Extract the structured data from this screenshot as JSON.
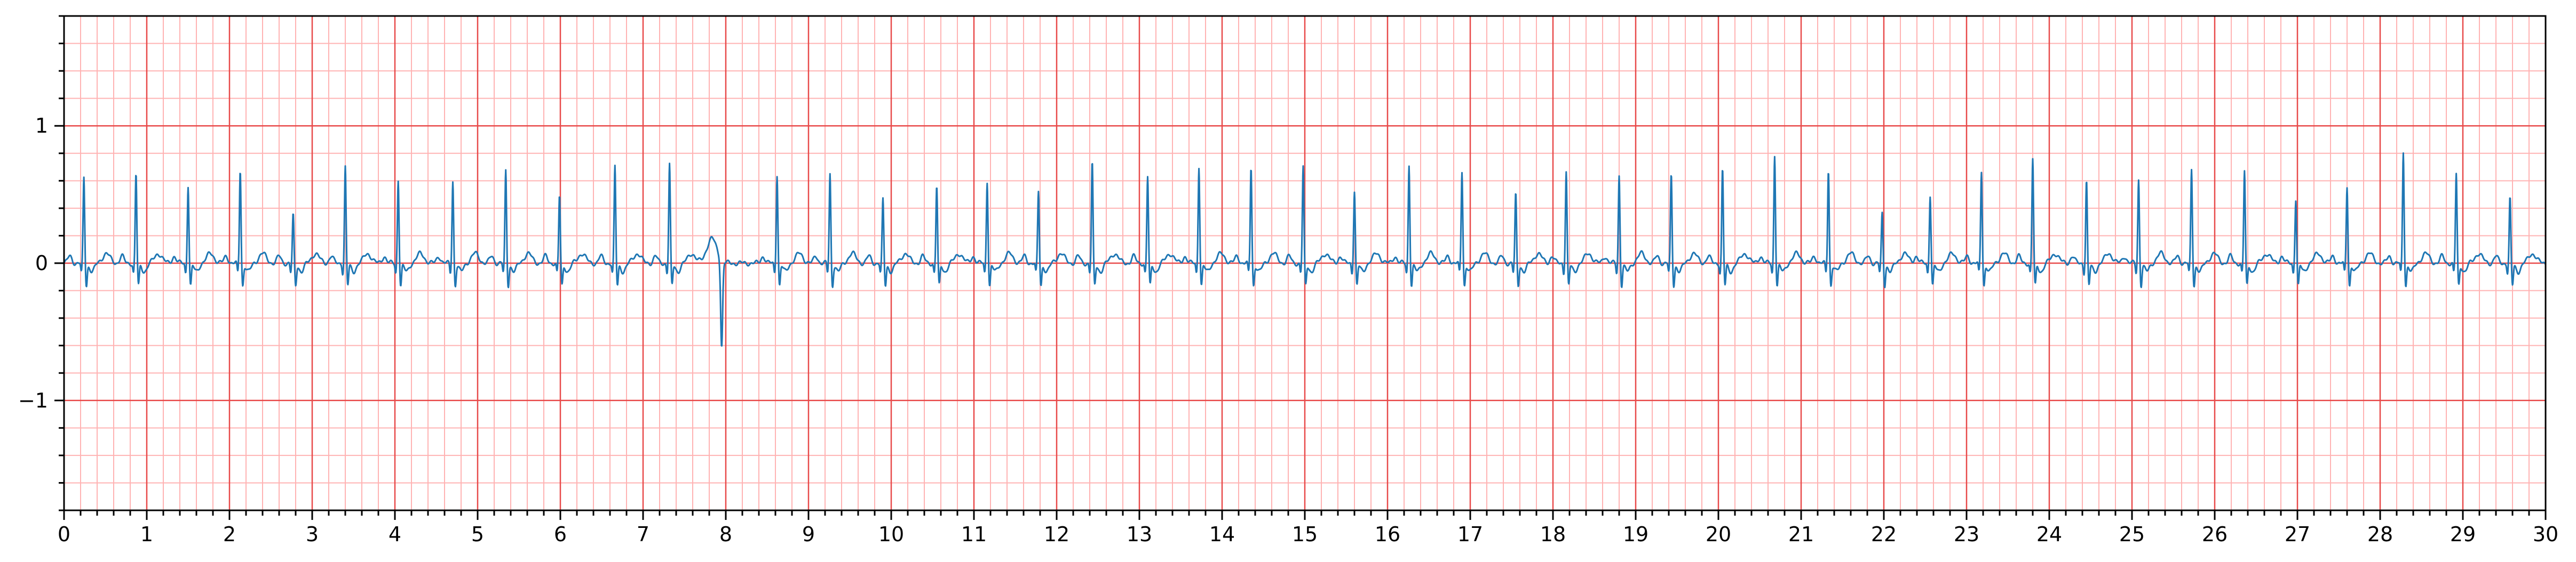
{
  "chart_data": {
    "type": "line",
    "title": "",
    "xlabel": "",
    "ylabel": "",
    "xlim": [
      0,
      30
    ],
    "ylim": [
      -1.8,
      1.8
    ],
    "x_major_ticks": [
      "0",
      "1",
      "2",
      "3",
      "4",
      "5",
      "6",
      "7",
      "8",
      "9",
      "10",
      "11",
      "12",
      "13",
      "14",
      "15",
      "16",
      "17",
      "18",
      "19",
      "20",
      "21",
      "22",
      "23",
      "24",
      "25",
      "26",
      "27",
      "28",
      "29",
      "30"
    ],
    "y_major_ticks": [
      {
        "value": 1,
        "label": "1"
      },
      {
        "value": 0,
        "label": "0"
      },
      {
        "value": -1,
        "label": "−1"
      }
    ],
    "x_minor_step": 0.2,
    "y_minor_step": 0.2,
    "grid": "ecg paper (major 1 unit, minor 0.2 unit)",
    "colors": {
      "trace": "#1f77b4",
      "grid_major": "#e84a4a",
      "grid_minor": "#ffb3b3"
    },
    "series": [
      {
        "beats": [
          {
            "t": 0.24,
            "r": 0.57
          },
          {
            "t": 0.87,
            "r": 0.6
          },
          {
            "t": 1.5,
            "r": 0.52
          },
          {
            "t": 2.13,
            "r": 0.63
          },
          {
            "t": 2.77,
            "r": 0.3
          },
          {
            "t": 3.4,
            "r": 0.65
          },
          {
            "t": 4.04,
            "r": 0.56
          },
          {
            "t": 4.7,
            "r": 0.55
          },
          {
            "t": 5.34,
            "r": 0.62
          },
          {
            "t": 5.99,
            "r": 0.44
          },
          {
            "t": 6.66,
            "r": 0.65
          },
          {
            "t": 7.32,
            "r": 0.67
          },
          {
            "t": 7.95,
            "r": -0.63
          },
          {
            "t": 8.62,
            "r": 0.6
          },
          {
            "t": 9.26,
            "r": 0.6
          },
          {
            "t": 9.9,
            "r": 0.41
          },
          {
            "t": 10.55,
            "r": 0.51
          },
          {
            "t": 11.16,
            "r": 0.55
          },
          {
            "t": 11.78,
            "r": 0.47
          },
          {
            "t": 12.43,
            "r": 0.68
          },
          {
            "t": 13.1,
            "r": 0.58
          },
          {
            "t": 13.72,
            "r": 0.66
          },
          {
            "t": 14.35,
            "r": 0.65
          },
          {
            "t": 14.98,
            "r": 0.65
          },
          {
            "t": 15.6,
            "r": 0.48
          },
          {
            "t": 16.26,
            "r": 0.67
          },
          {
            "t": 16.9,
            "r": 0.62
          },
          {
            "t": 17.55,
            "r": 0.45
          },
          {
            "t": 18.16,
            "r": 0.62
          },
          {
            "t": 18.8,
            "r": 0.59
          },
          {
            "t": 19.43,
            "r": 0.59
          },
          {
            "t": 20.05,
            "r": 0.63
          },
          {
            "t": 20.68,
            "r": 0.74
          },
          {
            "t": 21.33,
            "r": 0.63
          },
          {
            "t": 21.98,
            "r": 0.31
          },
          {
            "t": 22.56,
            "r": 0.45
          },
          {
            "t": 23.18,
            "r": 0.62
          },
          {
            "t": 23.8,
            "r": 0.71
          },
          {
            "t": 24.45,
            "r": 0.55
          },
          {
            "t": 25.08,
            "r": 0.56
          },
          {
            "t": 25.72,
            "r": 0.63
          },
          {
            "t": 26.36,
            "r": 0.62
          },
          {
            "t": 26.98,
            "r": 0.42
          },
          {
            "t": 27.6,
            "r": 0.51
          },
          {
            "t": 28.28,
            "r": 0.76
          },
          {
            "t": 28.92,
            "r": 0.6
          },
          {
            "t": 29.57,
            "r": 0.42
          }
        ]
      }
    ]
  }
}
